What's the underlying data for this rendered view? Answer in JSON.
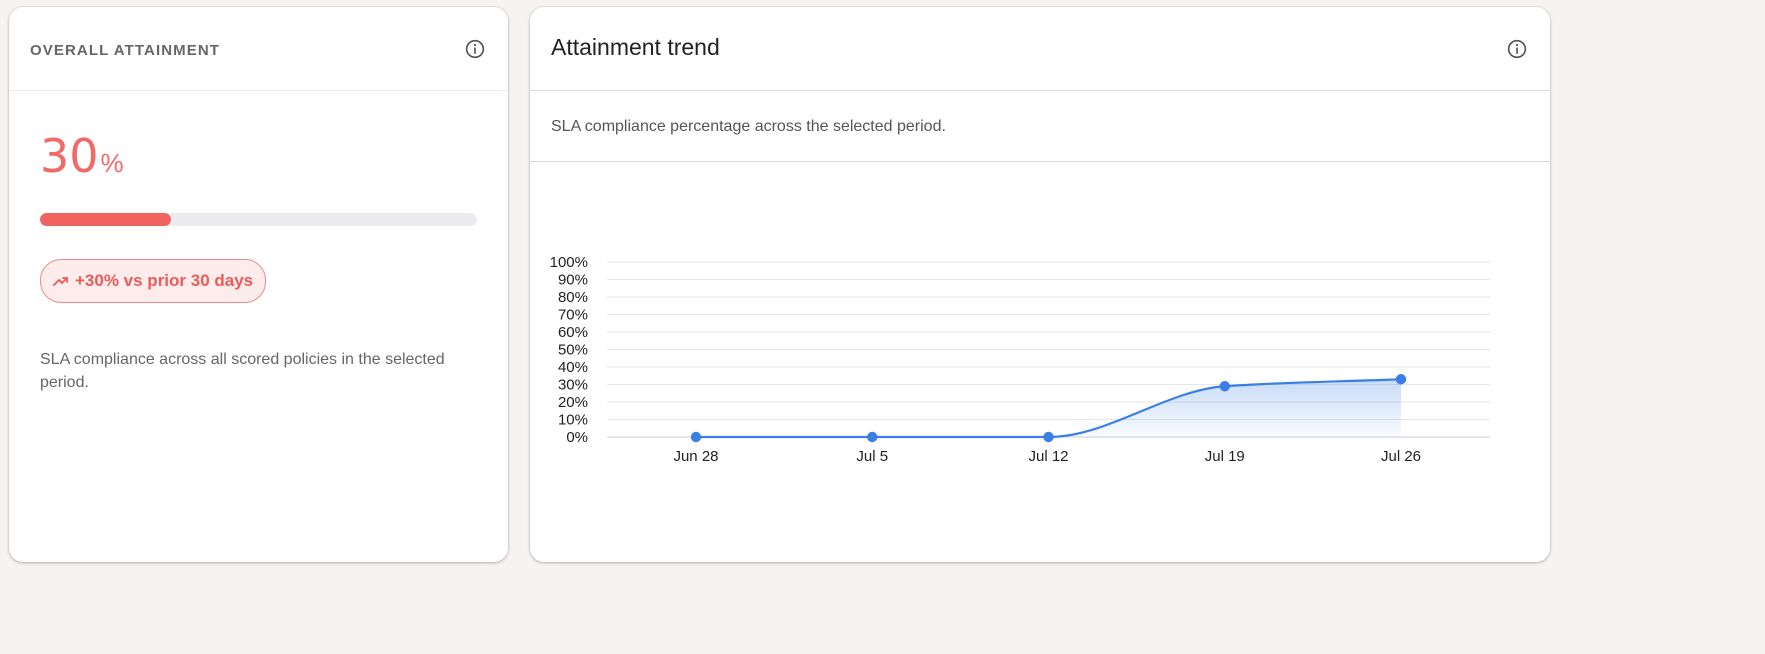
{
  "attainment_card": {
    "title": "OVERALL ATTAINMENT",
    "value": "30",
    "unit": "%",
    "progress": 0.3,
    "delta_label": "+30% vs prior 30 days",
    "description": "SLA compliance across all scored policies in the selected period.",
    "info_icon": "info-icon",
    "trend_icon": "trending-up-icon",
    "accent_color": "#f26260"
  },
  "trend_card": {
    "title": "Attainment trend",
    "subtitle": "SLA compliance percentage across the selected period.",
    "info_icon": "info-icon"
  },
  "chart_data": {
    "type": "area",
    "categories": [
      "Jun 28",
      "Jul 5",
      "Jul 12",
      "Jul 19",
      "Jul 26"
    ],
    "series": [
      {
        "values": [
          0,
          0,
          0,
          29,
          33
        ],
        "color": "#3b7fe6"
      }
    ],
    "y_ticks": [
      "0%",
      "10%",
      "20%",
      "30%",
      "40%",
      "50%",
      "60%",
      "70%",
      "80%",
      "90%",
      "100%"
    ],
    "ylim": [
      0,
      100
    ],
    "grid": true,
    "legend": "none"
  }
}
